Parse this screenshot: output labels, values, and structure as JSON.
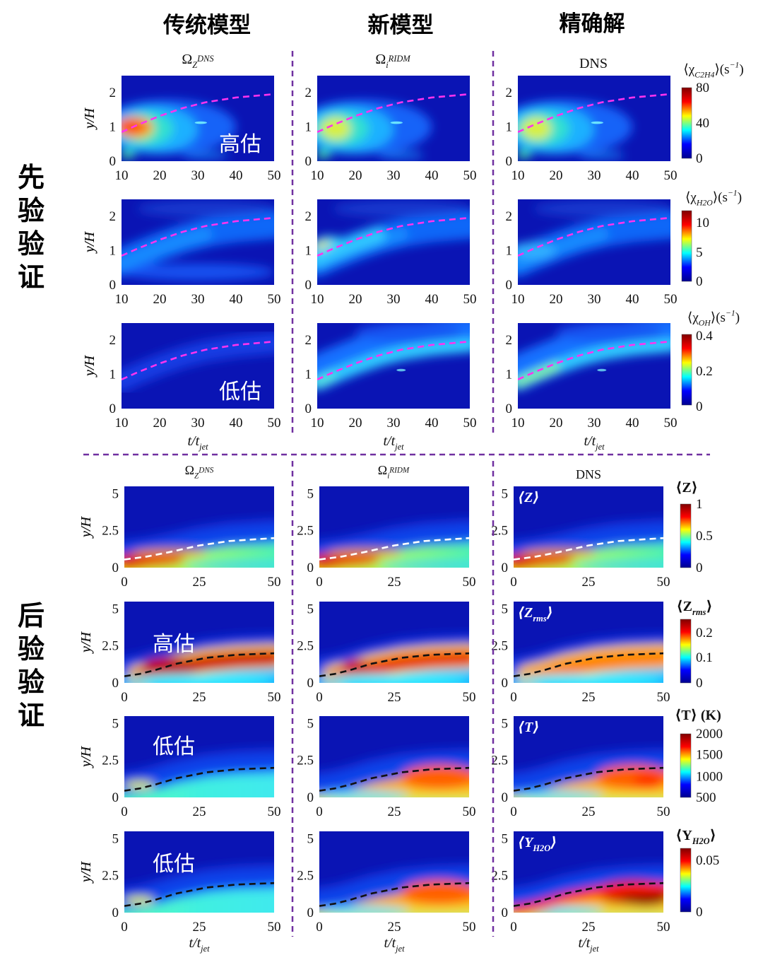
{
  "headers": {
    "traditional": "传统模型",
    "new": "新模型",
    "exact": "精确解"
  },
  "sections": {
    "a_priori": "先验验证",
    "a_posteriori": "后验验证"
  },
  "chart_data": {
    "type": "heatmap",
    "a_priori": {
      "column_titles": [
        [
          {
            "t": "Ω"
          },
          {
            "t": "Z",
            "sub": true
          },
          {
            "t": "DNS",
            "sup": true
          }
        ],
        [
          {
            "t": "Ω"
          },
          {
            "t": "i",
            "sub": true
          },
          {
            "t": "RIDM",
            "sup": true
          }
        ],
        [
          {
            "t": "DNS"
          }
        ]
      ],
      "xticks": [
        "10",
        "20",
        "30",
        "40",
        "50"
      ],
      "yticks": [
        "0",
        "1",
        "2"
      ],
      "xlim": [
        10,
        50
      ],
      "ylim": [
        0,
        2.5
      ],
      "xlabel": [
        {
          "t": "t/t"
        },
        {
          "t": "jet",
          "sub": true
        }
      ],
      "ylabel": "y/H",
      "rows": [
        {
          "variable": [
            {
              "t": "⟨χ"
            },
            {
              "t": "C2H4",
              "sub": true
            },
            {
              "t": "⟩(s"
            },
            {
              "t": "−1",
              "sup": true
            },
            {
              "t": ")"
            }
          ],
          "clim": [
            0,
            80
          ],
          "colorbar_ticks": [
            "80",
            "40",
            "0"
          ],
          "annotations": [
            "高估",
            "",
            ""
          ]
        },
        {
          "variable": [
            {
              "t": "⟨χ"
            },
            {
              "t": "H2O",
              "sub": true
            },
            {
              "t": "⟩(s"
            },
            {
              "t": "−1",
              "sup": true
            },
            {
              "t": ")"
            }
          ],
          "clim": [
            0,
            12
          ],
          "colorbar_ticks": [
            "10",
            "5",
            "0"
          ],
          "annotations": [
            "",
            "",
            ""
          ]
        },
        {
          "variable": [
            {
              "t": "⟨χ"
            },
            {
              "t": "OH",
              "sub": true
            },
            {
              "t": "⟩(s"
            },
            {
              "t": "−1",
              "sup": true
            },
            {
              "t": ")"
            }
          ],
          "clim": [
            0,
            0.4
          ],
          "colorbar_ticks": [
            "0.4",
            "0.2",
            "0"
          ],
          "annotations": [
            "低估",
            "",
            ""
          ]
        }
      ],
      "curve_color": "#ff33ee"
    },
    "a_posteriori": {
      "column_titles": [
        [
          {
            "t": "Ω"
          },
          {
            "t": "Z",
            "sub": true
          },
          {
            "t": "DNS",
            "sup": true
          }
        ],
        [
          {
            "t": "Ω"
          },
          {
            "t": "i",
            "sub": true
          },
          {
            "t": "RIDM",
            "sup": true
          }
        ],
        [
          {
            "t": "DNS"
          }
        ]
      ],
      "xticks": [
        "0",
        "25",
        "50"
      ],
      "yticks": [
        "0",
        "2.5",
        "5"
      ],
      "xlim": [
        0,
        50
      ],
      "ylim": [
        0,
        5.5
      ],
      "xlabel": [
        {
          "t": "t/t"
        },
        {
          "t": "jet",
          "sub": true
        }
      ],
      "ylabel": "y/H",
      "rows": [
        {
          "variable": [
            {
              "t": "⟨Z⟩"
            }
          ],
          "panel_label": [
            {
              "t": "⟨Z⟩"
            }
          ],
          "clim": [
            0,
            1
          ],
          "colorbar_ticks": [
            "1",
            "0.5",
            "0"
          ],
          "annotations": [
            "",
            "",
            ""
          ]
        },
        {
          "variable": [
            {
              "t": "⟨Z"
            },
            {
              "t": "rms",
              "sub": true
            },
            {
              "t": "⟩"
            }
          ],
          "panel_label": [
            {
              "t": "⟨Z"
            },
            {
              "t": "rms",
              "sub": true
            },
            {
              "t": "⟩"
            }
          ],
          "clim": [
            0,
            0.25
          ],
          "colorbar_ticks": [
            "0.2",
            "0.1",
            "0"
          ],
          "annotations": [
            "高估",
            "",
            ""
          ]
        },
        {
          "variable": [
            {
              "t": "⟨T⟩ (K)"
            }
          ],
          "panel_label": [
            {
              "t": "⟨T⟩"
            }
          ],
          "clim": [
            500,
            2000
          ],
          "colorbar_ticks": [
            "2000",
            "1500",
            "1000",
            "500"
          ],
          "annotations": [
            "低估",
            "",
            ""
          ]
        },
        {
          "variable": [
            {
              "t": "⟨Y"
            },
            {
              "t": "H2O",
              "sub": true
            },
            {
              "t": "⟩"
            }
          ],
          "panel_label": [
            {
              "t": "⟨Y"
            },
            {
              "t": "H2O",
              "sub": true
            },
            {
              "t": "⟩"
            }
          ],
          "clim": [
            0,
            0.065
          ],
          "colorbar_ticks": [
            "0.05",
            "0"
          ],
          "annotations": [
            "低估",
            "",
            ""
          ]
        }
      ]
    },
    "colormap": [
      "#00008f",
      "#0000ff",
      "#00ffff",
      "#ffff00",
      "#ff0000",
      "#800000"
    ],
    "divider_color": "#7030a0"
  }
}
